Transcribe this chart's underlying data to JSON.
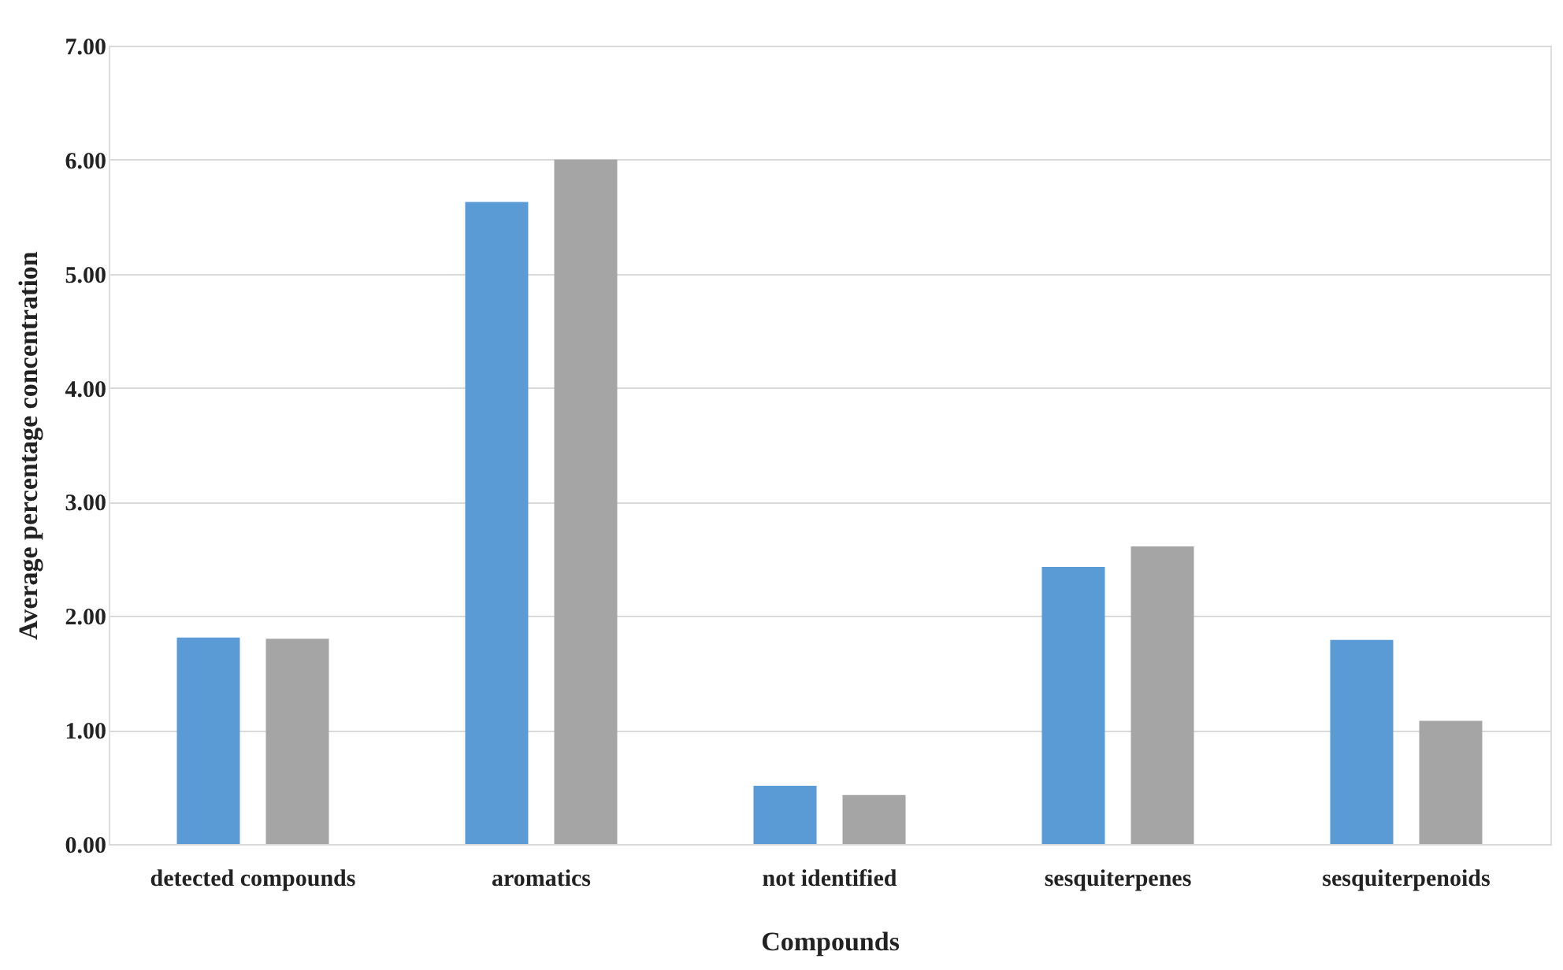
{
  "chart_data": {
    "type": "bar",
    "xlabel": "Compounds",
    "ylabel": "Average percentage concentration",
    "categories": [
      "detected compounds",
      "aromatics",
      "not identified",
      "sesquiterpenes",
      "sesquiterpenoids"
    ],
    "series": [
      {
        "color": "#5b9bd5",
        "values": [
          1.81,
          5.63,
          0.51,
          2.43,
          1.79
        ]
      },
      {
        "color": "#a5a5a5",
        "values": [
          1.8,
          6.0,
          0.43,
          2.61,
          1.08
        ]
      }
    ],
    "ylim": [
      0,
      7
    ],
    "yticks": [
      {
        "value": 0,
        "label": "0.00"
      },
      {
        "value": 1,
        "label": "1.00"
      },
      {
        "value": 2,
        "label": "2.00"
      },
      {
        "value": 3,
        "label": "3.00"
      },
      {
        "value": 4,
        "label": "4.00"
      },
      {
        "value": 5,
        "label": "5.00"
      },
      {
        "value": 6,
        "label": "6.00"
      },
      {
        "value": 7,
        "label": "7.00"
      }
    ],
    "grid": "y"
  }
}
